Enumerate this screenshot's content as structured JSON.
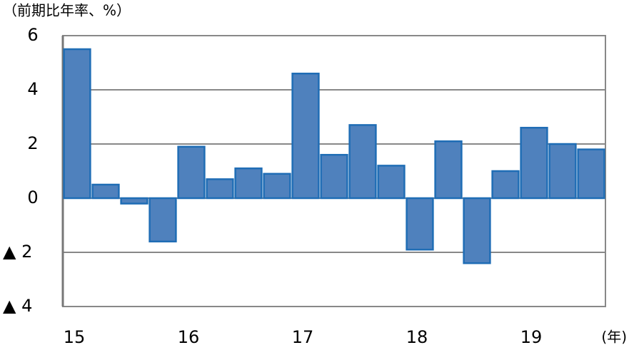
{
  "chart_data": {
    "type": "bar",
    "title": "（前期比年率、%）",
    "x_label": "(年)",
    "categories": [
      "15",
      null,
      null,
      null,
      "16",
      null,
      null,
      null,
      "17",
      null,
      null,
      null,
      "18",
      null,
      null,
      null,
      "19",
      null,
      null
    ],
    "values": [
      5.5,
      0.5,
      -0.2,
      -1.6,
      1.9,
      0.7,
      1.1,
      0.9,
      4.6,
      1.6,
      2.7,
      1.2,
      -1.9,
      2.1,
      -2.4,
      1.0,
      2.6,
      2.0,
      1.8
    ],
    "color": "#4f81bd",
    "ylim": [
      -4,
      6
    ],
    "yticks": [
      {
        "value": -4,
        "label": "▲ 4"
      },
      {
        "value": -2,
        "label": "▲ 2"
      },
      0,
      2,
      4,
      6
    ],
    "grid": true
  }
}
